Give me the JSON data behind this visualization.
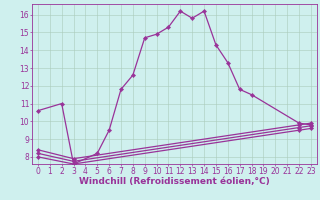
{
  "background_color": "#cff0ee",
  "grid_color": "#aaccbb",
  "line_color": "#993399",
  "xlim": [
    -0.5,
    23.5
  ],
  "ylim": [
    7.6,
    16.6
  ],
  "xlabel": "Windchill (Refroidissement éolien,°C)",
  "xticks": [
    0,
    1,
    2,
    3,
    4,
    5,
    6,
    7,
    8,
    9,
    10,
    11,
    12,
    13,
    14,
    15,
    16,
    17,
    18,
    19,
    20,
    21,
    22,
    23
  ],
  "yticks": [
    8,
    9,
    10,
    11,
    12,
    13,
    14,
    15,
    16
  ],
  "xlabel_fontsize": 6.5,
  "tick_fontsize": 5.5,
  "main_curve": {
    "x": [
      0,
      2,
      3,
      5,
      6,
      7,
      8,
      9,
      10,
      11,
      12,
      13,
      14,
      15,
      16,
      17,
      18,
      22,
      23
    ],
    "y": [
      10.6,
      11.0,
      7.6,
      8.2,
      9.5,
      11.8,
      12.6,
      14.7,
      14.9,
      15.3,
      16.2,
      15.8,
      16.2,
      14.3,
      13.3,
      11.8,
      11.5,
      9.9,
      9.8
    ]
  },
  "flat_line1": {
    "x": [
      0,
      3,
      22,
      23
    ],
    "y": [
      8.4,
      7.9,
      9.8,
      9.9
    ]
  },
  "flat_line2": {
    "x": [
      0,
      3,
      22,
      23
    ],
    "y": [
      8.2,
      7.75,
      9.65,
      9.75
    ]
  },
  "flat_line3": {
    "x": [
      0,
      3,
      22,
      23
    ],
    "y": [
      8.0,
      7.6,
      9.5,
      9.6
    ]
  }
}
